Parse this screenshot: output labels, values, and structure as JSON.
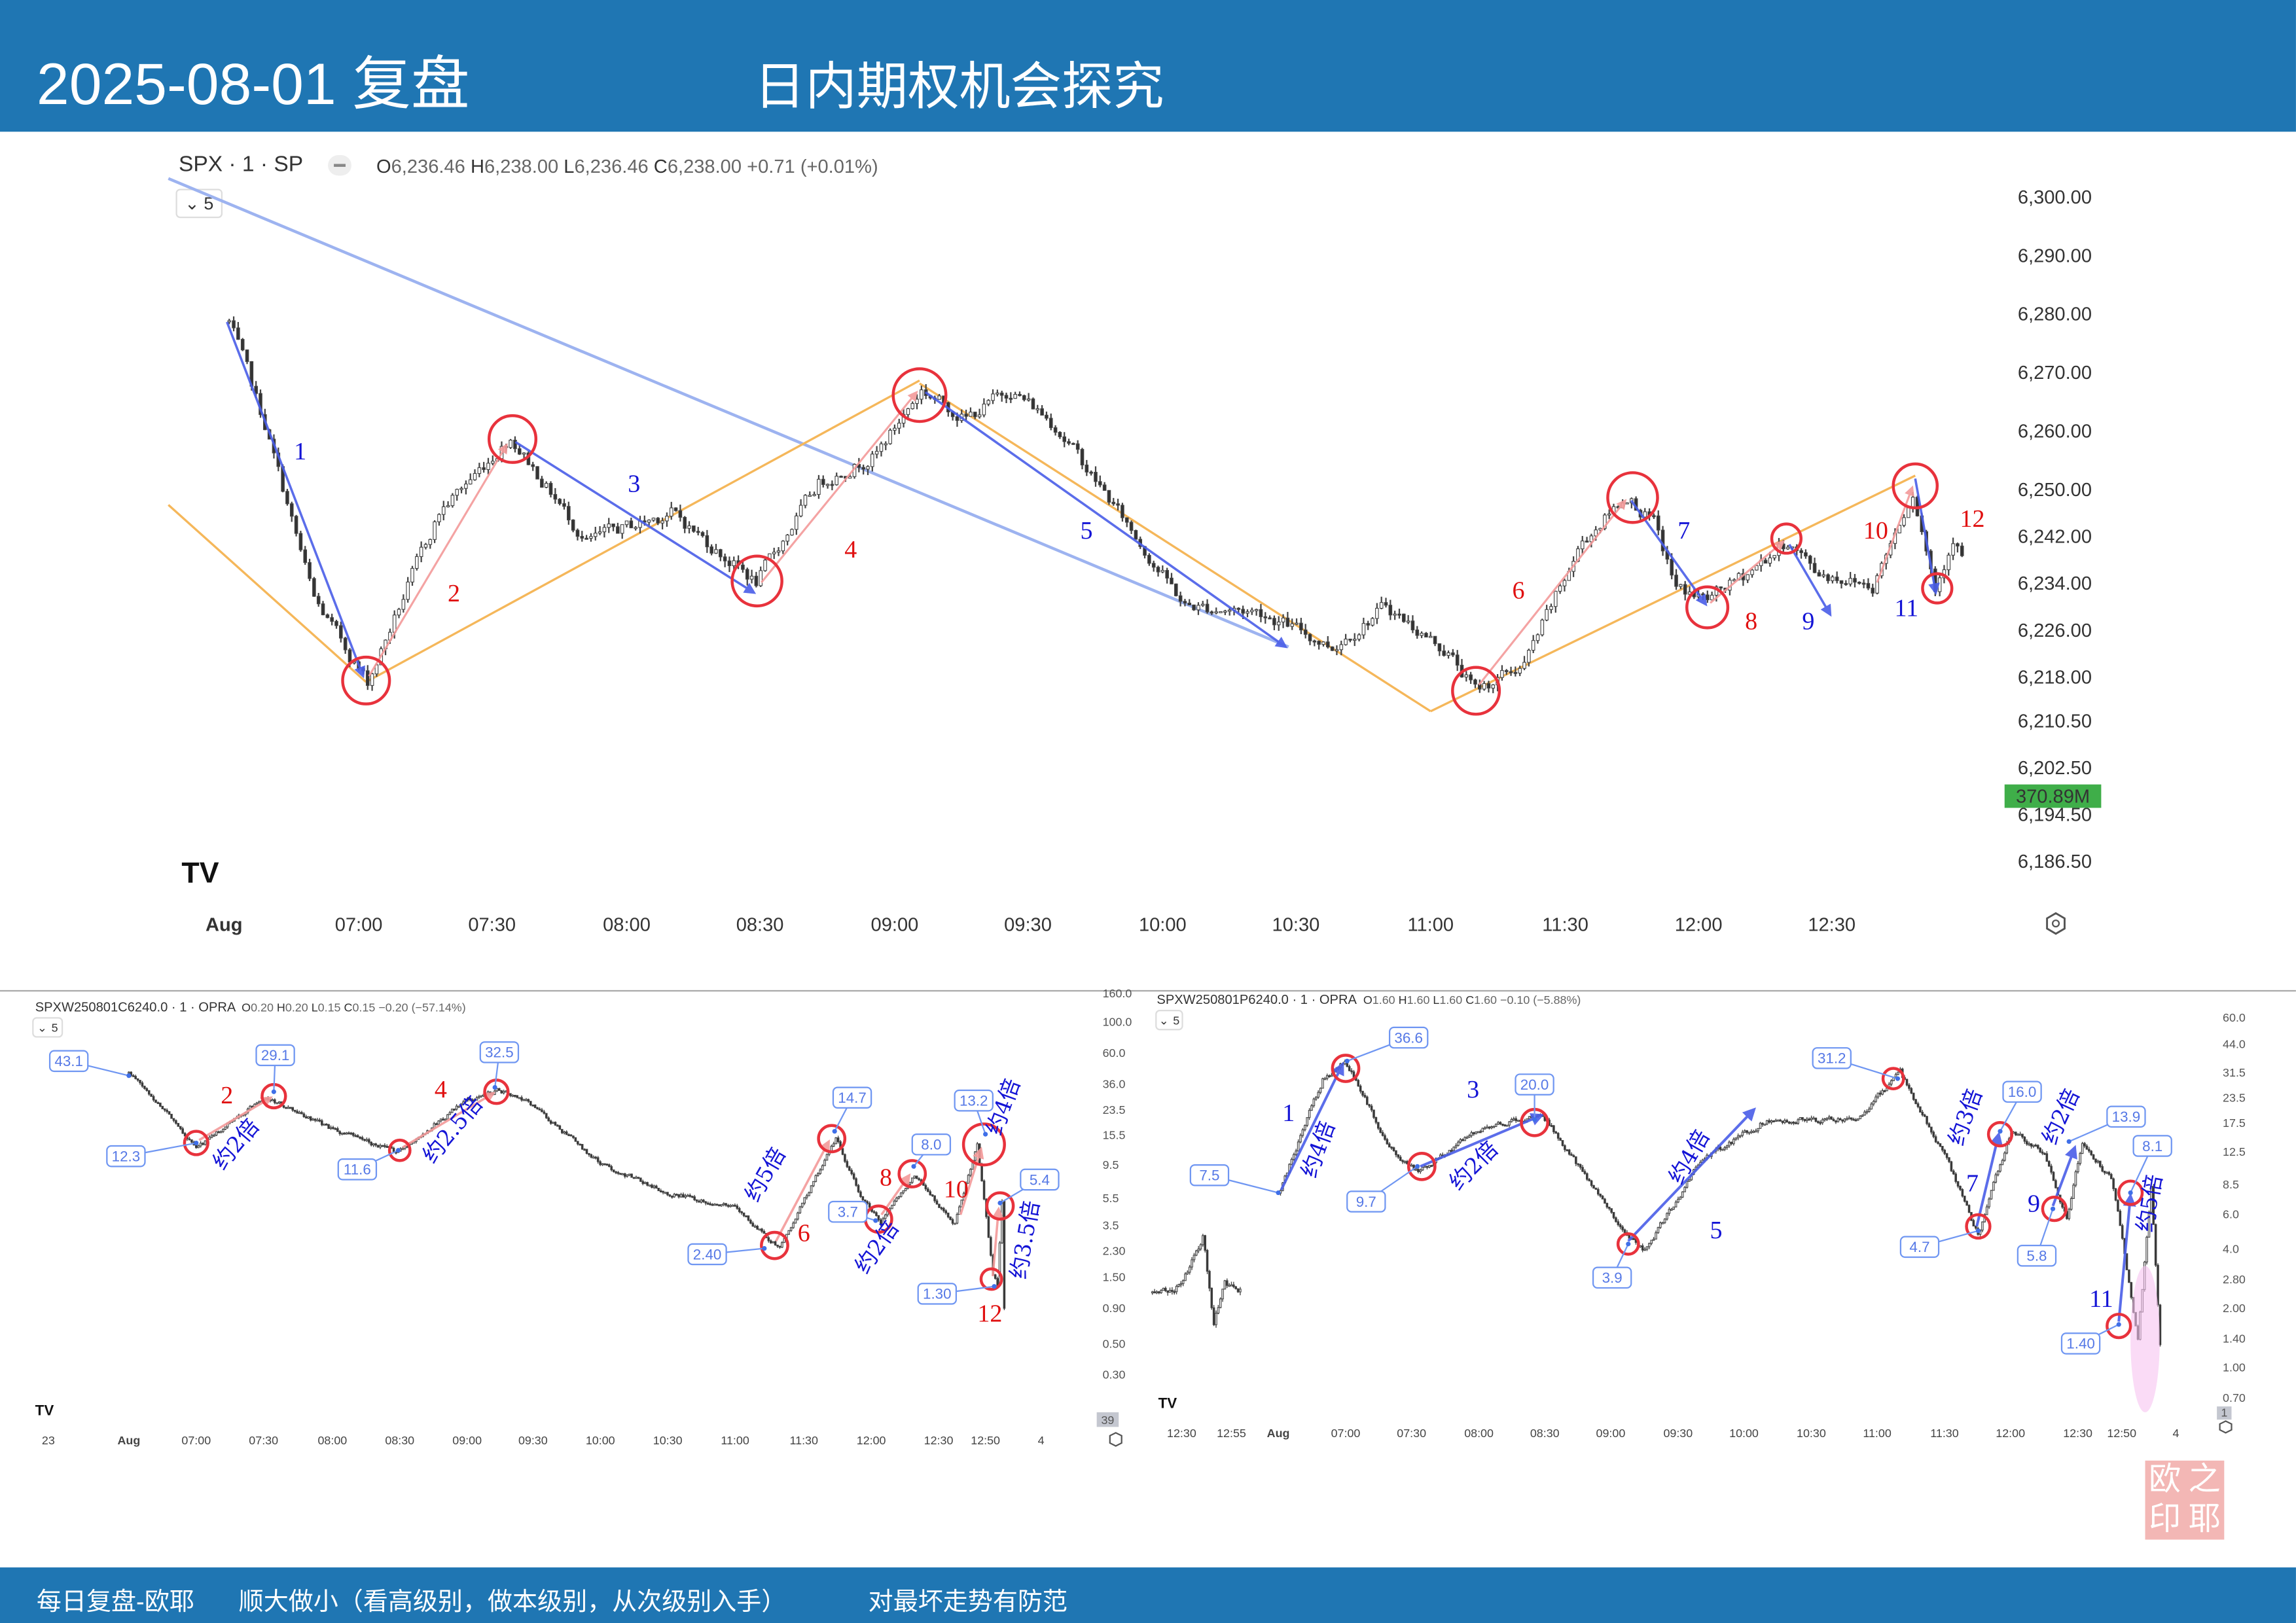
{
  "header": {
    "title": "2025-08-01 复盘",
    "subtitle": "日内期权机会探究"
  },
  "top_chart": {
    "symbol": "SPX · 1 · SP",
    "ohlc": [
      {
        "k": "O",
        "v": "6,236.46"
      },
      {
        "k": "H",
        "v": "6,238.00"
      },
      {
        "k": "L",
        "v": "6,236.46"
      },
      {
        "k": "C",
        "v": "6,238.00"
      }
    ],
    "change": "+0.71 (+0.01%)",
    "indicator_count": "5",
    "y_ticks": [
      "6,300.00",
      "6,290.00",
      "6,280.00",
      "6,270.00",
      "6,260.00",
      "6,250.00",
      "6,242.00",
      "6,234.00",
      "6,226.00",
      "6,218.00",
      "6,210.50",
      "6,202.50",
      "6,194.50",
      "6,186.50"
    ],
    "x_ticks": [
      "Aug",
      "07:00",
      "07:30",
      "08:00",
      "08:30",
      "09:00",
      "09:30",
      "10:00",
      "10:30",
      "11:00",
      "11:30",
      "12:00",
      "12:30"
    ],
    "volume_badge": "370.89M",
    "wave_labels": [
      "1",
      "2",
      "3",
      "4",
      "5",
      "6",
      "7",
      "8",
      "9",
      "10",
      "11",
      "12"
    ]
  },
  "call_chart": {
    "symbol": "SPXW250801C6240.0 · 1 · OPRA",
    "ohlc": [
      {
        "k": "O",
        "v": "0.20"
      },
      {
        "k": "H",
        "v": "0.20"
      },
      {
        "k": "L",
        "v": "0.15"
      },
      {
        "k": "C",
        "v": "0.15"
      }
    ],
    "change": "−0.20 (−57.14%)",
    "indicator_count": "5",
    "y_ticks": [
      "160.0",
      "100.0",
      "60.0",
      "36.0",
      "23.5",
      "15.5",
      "9.5",
      "5.5",
      "3.5",
      "2.30",
      "1.50",
      "0.90",
      "0.50",
      "0.30"
    ],
    "x_ticks": [
      "23",
      "Aug",
      "07:00",
      "07:30",
      "08:00",
      "08:30",
      "09:00",
      "09:30",
      "10:00",
      "10:30",
      "11:00",
      "11:30",
      "12:00",
      "12:30",
      "12:50",
      "4"
    ],
    "volume_badge": "39",
    "value_boxes": [
      "43.1",
      "12.3",
      "29.1",
      "11.6",
      "32.5",
      "2.40",
      "14.7",
      "3.7",
      "8.0",
      "13.2",
      "1.30",
      "5.4"
    ],
    "wave_labels": [
      "2",
      "4",
      "6",
      "8",
      "10",
      "12"
    ],
    "multipliers": [
      "约2倍",
      "约2.5倍",
      "约5倍",
      "约2倍",
      "约4倍",
      "约3.5倍"
    ]
  },
  "put_chart": {
    "symbol": "SPXW250801P6240.0 · 1 · OPRA",
    "ohlc": [
      {
        "k": "O",
        "v": "1.60"
      },
      {
        "k": "H",
        "v": "1.60"
      },
      {
        "k": "L",
        "v": "1.60"
      },
      {
        "k": "C",
        "v": "1.60"
      }
    ],
    "change": "−0.10 (−5.88%)",
    "indicator_count": "5",
    "y_ticks": [
      "60.0",
      "44.0",
      "31.5",
      "23.5",
      "17.5",
      "12.5",
      "8.5",
      "6.0",
      "4.0",
      "2.80",
      "2.00",
      "1.40",
      "1.00",
      "0.70"
    ],
    "x_ticks": [
      "12:30",
      "12:55",
      "Aug",
      "07:00",
      "07:30",
      "08:00",
      "08:30",
      "09:00",
      "09:30",
      "10:00",
      "10:30",
      "11:00",
      "11:30",
      "12:00",
      "12:30",
      "12:50",
      "4"
    ],
    "volume_badge": "1",
    "value_boxes": [
      "36.6",
      "7.5",
      "20.0",
      "9.7",
      "3.9",
      "31.2",
      "16.0",
      "4.7",
      "13.9",
      "5.8",
      "8.1",
      "1.40"
    ],
    "wave_labels": [
      "1",
      "3",
      "5",
      "7",
      "9",
      "11"
    ],
    "multipliers": [
      "约4倍",
      "约2倍",
      "约4倍",
      "约3倍",
      "约2倍",
      "约5倍"
    ]
  },
  "footer": {
    "left": "每日复盘-欧耶",
    "middle": "顺大做小（看高级别，做本级别，从次级别入手）",
    "right": "对最坏走势有防范"
  },
  "seal": {
    "chars": [
      "欧",
      "之",
      "印",
      "耶"
    ]
  },
  "colors": {
    "brand": "#1f76b3",
    "wave_up": "#e01010",
    "wave_down": "#1414d6",
    "circle": "#e8323c",
    "volume_badge": "#3fae49"
  },
  "chart_data": [
    {
      "type": "candlestick",
      "name": "SPX 1-minute",
      "scale": "linear",
      "ylim": [
        6186.5,
        6300
      ],
      "pivots": [
        [
          "06:31",
          6278.5
        ],
        [
          "06:39",
          6261
        ],
        [
          "06:50",
          6231
        ],
        [
          "07:02",
          6217
        ],
        [
          "07:07",
          6226
        ],
        [
          "07:18",
          6246
        ],
        [
          "07:34",
          6259
        ],
        [
          "07:51",
          6241
        ],
        [
          "08:10",
          6246
        ],
        [
          "08:29",
          6234
        ],
        [
          "08:43",
          6251
        ],
        [
          "08:56",
          6256
        ],
        [
          "09:06",
          6267
        ],
        [
          "09:16",
          6262
        ],
        [
          "09:26",
          6267
        ],
        [
          "09:36",
          6261
        ],
        [
          "09:52",
          6244
        ],
        [
          "10:05",
          6230
        ],
        [
          "10:22",
          6229
        ],
        [
          "10:38",
          6223
        ],
        [
          "10:50",
          6230
        ],
        [
          "11:04",
          6222
        ],
        [
          "11:10",
          6215.5
        ],
        [
          "11:21",
          6220
        ],
        [
          "11:34",
          6241
        ],
        [
          "11:44",
          6249
        ],
        [
          "11:50",
          6244
        ],
        [
          "11:55",
          6233
        ],
        [
          "12:02",
          6231
        ],
        [
          "12:10",
          6235
        ],
        [
          "12:20",
          6241
        ],
        [
          "12:26",
          6236
        ],
        [
          "12:39",
          6233.5
        ],
        [
          "12:48",
          6250
        ],
        [
          "12:53",
          6233
        ],
        [
          "12:57",
          6242
        ],
        [
          "13:00",
          6237
        ]
      ]
    },
    {
      "type": "candlestick",
      "name": "SPXW250801C6240.0 1-minute",
      "scale": "log",
      "ylim": [
        0.3,
        160
      ],
      "pivots": [
        [
          "06:30",
          43
        ],
        [
          "06:50",
          20
        ],
        [
          "07:00",
          12.3
        ],
        [
          "07:30",
          29.1
        ],
        [
          "08:00",
          17
        ],
        [
          "08:30",
          11.6
        ],
        [
          "09:00",
          27
        ],
        [
          "09:15",
          32.5
        ],
        [
          "09:30",
          25
        ],
        [
          "10:00",
          9.6
        ],
        [
          "10:30",
          6
        ],
        [
          "11:00",
          4.7
        ],
        [
          "11:20",
          2.4
        ],
        [
          "11:45",
          14.7
        ],
        [
          "11:55",
          6
        ],
        [
          "12:05",
          3.7
        ],
        [
          "12:20",
          8.0
        ],
        [
          "12:38",
          3.6
        ],
        [
          "12:48",
          13.2
        ],
        [
          "12:55",
          1.6
        ],
        [
          "12:57",
          1.3
        ],
        [
          "12:59",
          5.4
        ],
        [
          "13:01",
          0.16
        ]
      ]
    },
    {
      "type": "candlestick",
      "name": "SPXW250801P6240.0 1-minute",
      "scale": "log",
      "ylim": [
        0.7,
        60
      ],
      "prev_session_pivots": [
        [
          "12:17",
          2.4
        ],
        [
          "12:30",
          2.6
        ],
        [
          "12:40",
          4.6
        ],
        [
          "12:45",
          1.7
        ],
        [
          "12:50",
          2.6
        ],
        [
          "12:58",
          2.5
        ]
      ],
      "pivots": [
        [
          "06:30",
          7.5
        ],
        [
          "06:50",
          29
        ],
        [
          "07:00",
          36.6
        ],
        [
          "07:20",
          13
        ],
        [
          "07:33",
          9.7
        ],
        [
          "08:00",
          16
        ],
        [
          "08:20",
          18
        ],
        [
          "08:28",
          20.0
        ],
        [
          "09:00",
          6
        ],
        [
          "09:15",
          3.9
        ],
        [
          "09:40",
          11
        ],
        [
          "10:10",
          18
        ],
        [
          "10:50",
          18
        ],
        [
          "11:10",
          31.2
        ],
        [
          "11:30",
          12
        ],
        [
          "11:45",
          4.7
        ],
        [
          "12:00",
          16.0
        ],
        [
          "12:15",
          12
        ],
        [
          "12:25",
          5.8
        ],
        [
          "12:32",
          13.9
        ],
        [
          "12:45",
          9
        ],
        [
          "12:50",
          4.5
        ],
        [
          "12:57",
          1.4
        ],
        [
          "13:03",
          8.1
        ],
        [
          "13:08",
          0.8
        ]
      ]
    }
  ]
}
